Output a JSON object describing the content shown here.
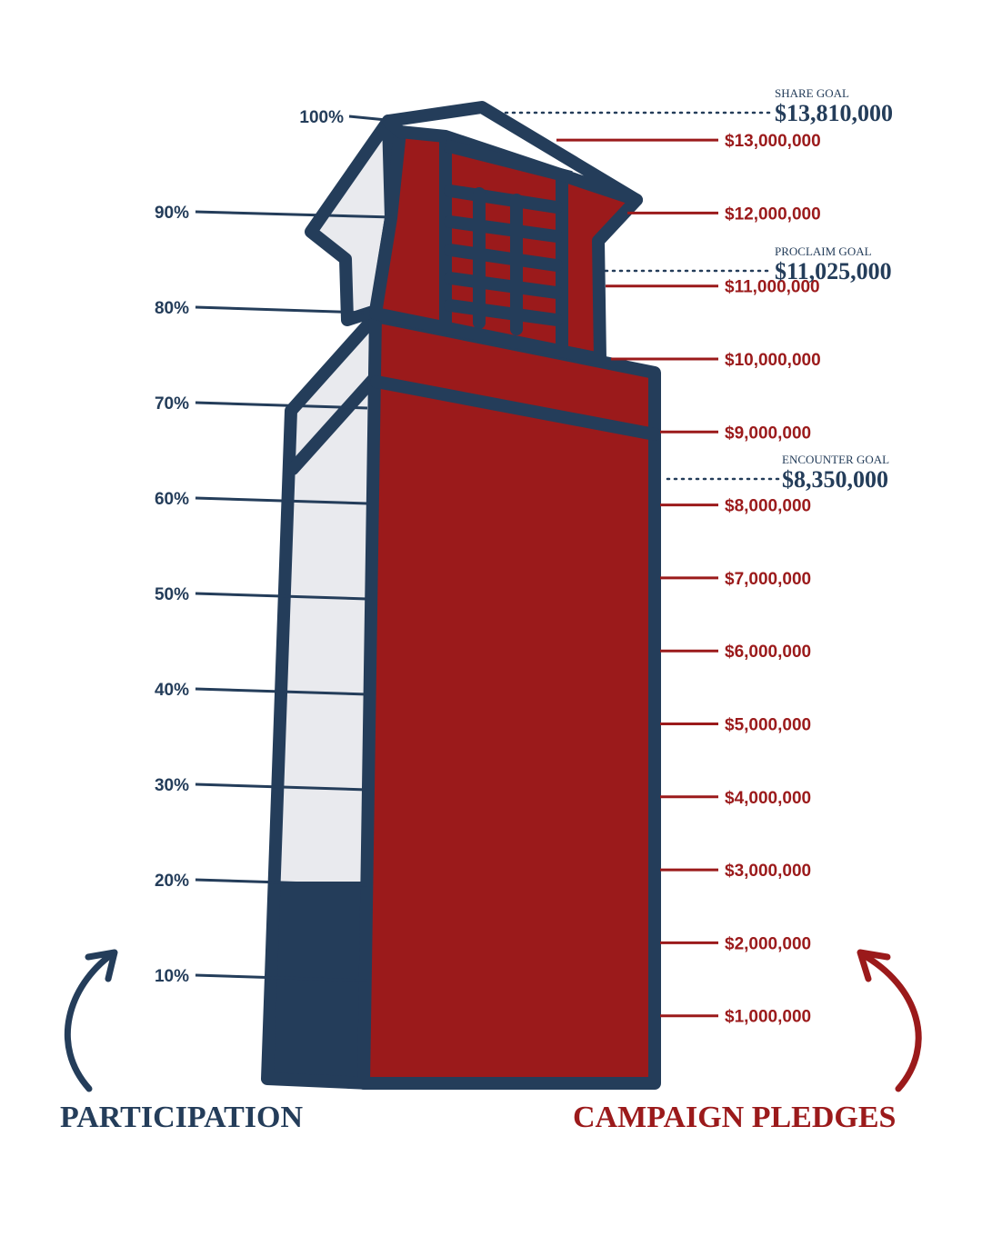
{
  "colors": {
    "navy": "#243d5a",
    "red": "#9b1a1b",
    "light": "#e9eaee",
    "white": "#ffffff"
  },
  "chart_data": {
    "type": "thermometer",
    "participation": {
      "label": "PARTICIPATION",
      "ticks": [
        "10%",
        "20%",
        "30%",
        "40%",
        "50%",
        "60%",
        "70%",
        "80%",
        "90%",
        "100%"
      ],
      "value_percent": 20
    },
    "pledges": {
      "label": "CAMPAIGN PLEDGES",
      "ticks": [
        "$1,000,000",
        "$2,000,000",
        "$3,000,000",
        "$4,000,000",
        "$5,000,000",
        "$6,000,000",
        "$7,000,000",
        "$8,000,000",
        "$9,000,000",
        "$10,000,000",
        "$11,000,000",
        "$12,000,000",
        "$13,000,000"
      ],
      "value_dollars": 13000000
    },
    "goals": [
      {
        "name": "SHARE GOAL",
        "amount": "$13,810,000",
        "value": 13810000
      },
      {
        "name": "PROCLAIM GOAL",
        "amount": "$11,025,000",
        "value": 11025000
      },
      {
        "name": "ENCOUNTER GOAL",
        "amount": "$8,350,000",
        "value": 8350000
      }
    ]
  }
}
